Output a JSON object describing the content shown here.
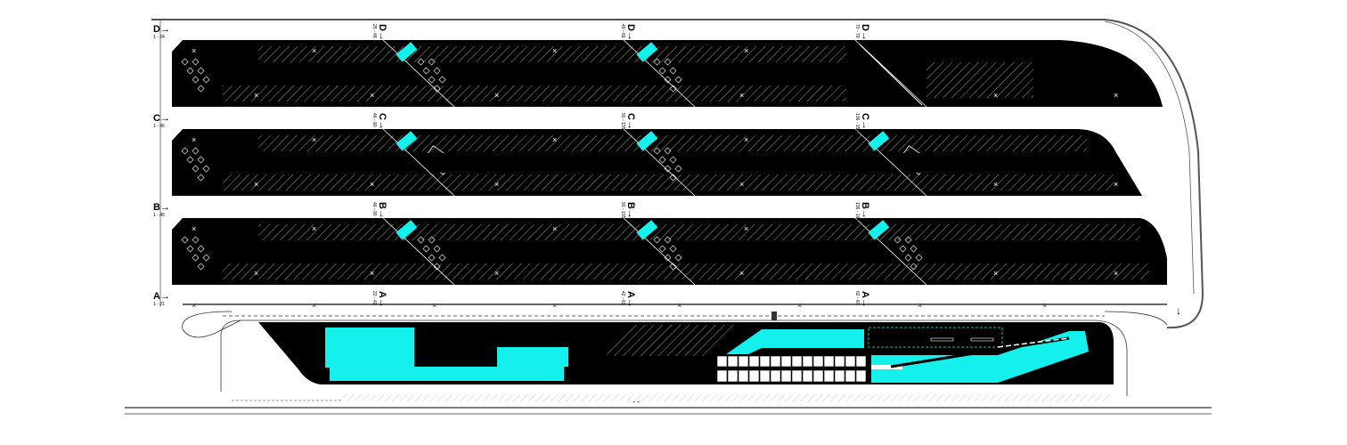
{
  "plan": {
    "colors": {
      "paving": "#000000",
      "background": "#ffffff",
      "accent": "#14f0ec",
      "linework": "#ffffff"
    },
    "row_labels": [
      {
        "letter": "D→",
        "range": "1 - 24"
      },
      {
        "letter": "C→",
        "range": "1 - 45"
      },
      {
        "letter": "B→",
        "range": "1 - 45"
      },
      {
        "letter": "A→",
        "range": "1 - 21"
      }
    ],
    "section_labels": [
      {
        "letter": "D→",
        "range": "25 - 48"
      },
      {
        "letter": "D→",
        "range": "49 - 69"
      },
      {
        "letter": "D→",
        "range": "70 - 79"
      },
      {
        "letter": "C→",
        "range": "46 - 90"
      },
      {
        "letter": "C→",
        "range": "91 - 135"
      },
      {
        "letter": "C→",
        "range": "136 - 152"
      },
      {
        "letter": "B→",
        "range": "46 - 90"
      },
      {
        "letter": "B→",
        "range": "91 - 135"
      },
      {
        "letter": "B→",
        "range": "136 - 164"
      },
      {
        "letter": "A→",
        "range": "22 - 41"
      },
      {
        "letter": "A→",
        "range": "42 - 61"
      },
      {
        "letter": "A→",
        "range": "62 - 67"
      }
    ],
    "icons": [
      "arrow-down-icon",
      "x-marker-icon",
      "keypad-diamond-icon"
    ]
  }
}
